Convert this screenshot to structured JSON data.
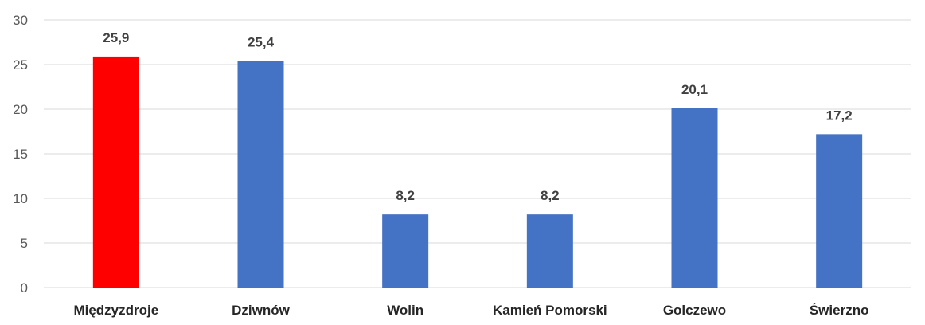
{
  "chart_data": {
    "type": "bar",
    "categories": [
      "Międzyzdroje",
      "Dziwnów",
      "Wolin",
      "Kamień Pomorski",
      "Golczewo",
      "Świerzno"
    ],
    "values": [
      25.9,
      25.4,
      8.2,
      8.2,
      20.1,
      17.2
    ],
    "data_labels": [
      "25,9",
      "25,4",
      "8,2",
      "8,2",
      "20,1",
      "17,2"
    ],
    "y_ticks": [
      "0",
      "5",
      "10",
      "15",
      "20",
      "25",
      "30"
    ],
    "ylim": [
      0,
      30
    ],
    "grid": true,
    "legend": "none",
    "colors": {
      "highlight": "#ff0000",
      "default": "#4472c4",
      "grid": "#d9d9d9"
    },
    "highlight_index": 0
  }
}
